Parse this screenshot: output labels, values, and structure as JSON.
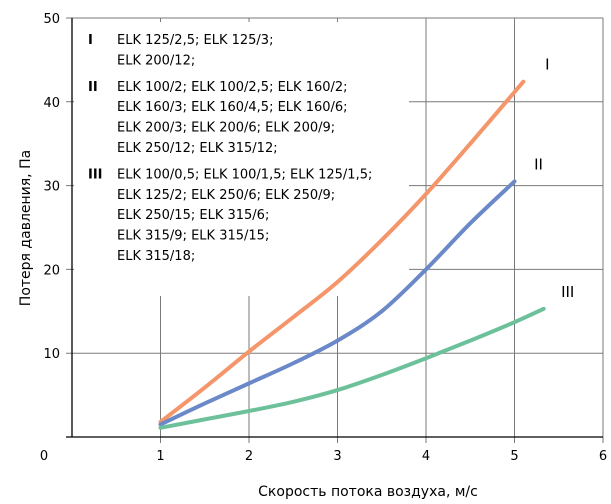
{
  "chart_data": {
    "type": "line",
    "xlabel": "Скорость потока воздуха, м/с",
    "ylabel": "Потеря давления, Па",
    "xlim": [
      0,
      6
    ],
    "ylim": [
      0,
      50
    ],
    "x_ticks": [
      "0",
      "1",
      "2",
      "3",
      "4",
      "5",
      "6"
    ],
    "y_ticks": [
      "10",
      "20",
      "30",
      "40",
      "50"
    ],
    "grid": true,
    "series": [
      {
        "name": "I",
        "color": "#f5956a",
        "x": [
          1.0,
          1.5,
          2.0,
          2.5,
          3.0,
          3.5,
          4.0,
          4.5,
          5.1
        ],
        "y": [
          1.8,
          5.9,
          10.2,
          14.3,
          18.5,
          23.5,
          29.0,
          35.0,
          42.4
        ]
      },
      {
        "name": "II",
        "color": "#6b89c9",
        "x": [
          1.0,
          1.5,
          2.0,
          2.5,
          3.0,
          3.5,
          4.0,
          4.5,
          5.0
        ],
        "y": [
          1.5,
          4.0,
          6.4,
          8.8,
          11.5,
          15.0,
          20.0,
          25.5,
          30.5
        ]
      },
      {
        "name": "III",
        "color": "#6cc19b",
        "x": [
          1.0,
          1.5,
          2.0,
          2.5,
          3.0,
          3.5,
          4.0,
          4.5,
          5.0,
          5.33
        ],
        "y": [
          1.1,
          2.1,
          3.1,
          4.2,
          5.6,
          7.4,
          9.4,
          11.5,
          13.7,
          15.3
        ]
      }
    ],
    "legend": [
      {
        "num": "I",
        "lines": [
          "ELK 125/2,5; ELK 125/3;",
          "ELK 200/12;"
        ]
      },
      {
        "num": "II",
        "lines": [
          "ELK 100/2; ELK 100/2,5; ELK 160/2;",
          "ELK 160/3; ELK 160/4,5; ELK 160/6;",
          "ELK 200/3; ELK 200/6; ELK 200/9;",
          "ELK 250/12; ELK 315/12;"
        ]
      },
      {
        "num": "III",
        "lines": [
          "ELK 100/0,5; ELK 100/1,5; ELK 125/1,5;",
          "ELK 125/2; ELK 250/6; ELK 250/9;",
          "ELK 250/15; ELK 315/6;",
          "ELK 315/9; ELK 315/15;",
          "ELK 315/18;"
        ]
      }
    ],
    "legend_placement": "top-left"
  }
}
